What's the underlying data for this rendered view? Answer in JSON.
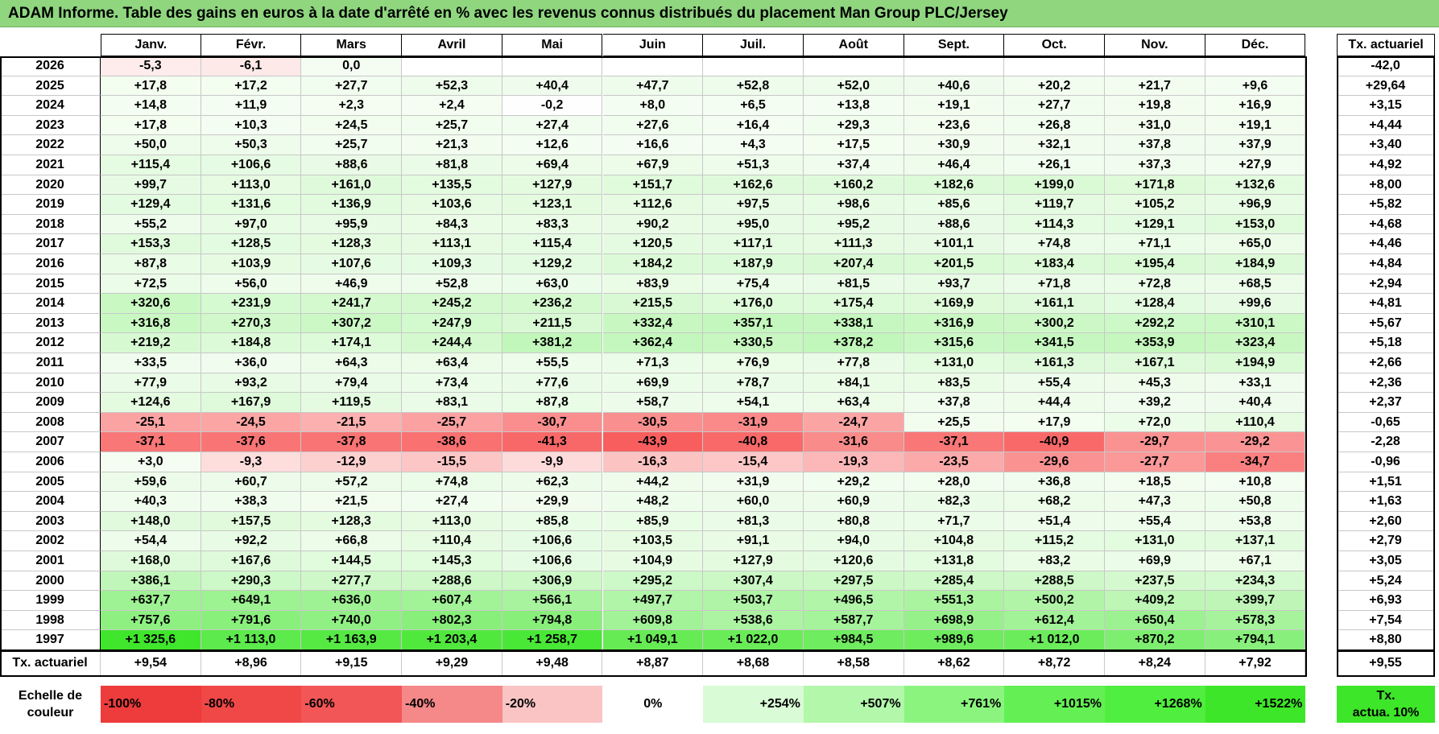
{
  "title": "ADAM Informe. Table des gains en euros à la date d'arrêté en % avec les revenus connus distribués du placement Man Group PLC/Jersey",
  "chart_data": {
    "type": "heatmap",
    "months": [
      "Janv.",
      "Févr.",
      "Mars",
      "Avril",
      "Mai",
      "Juin",
      "Juil.",
      "Août",
      "Sept.",
      "Oct.",
      "Nov.",
      "Déc."
    ],
    "tx_header": "Tx. actuariel",
    "rows": [
      {
        "year": "2026",
        "values": [
          "-5,3",
          "-6,1",
          "0,0",
          "",
          "",
          "",
          "",
          "",
          "",
          "",
          "",
          ""
        ],
        "tx": "-42,0"
      },
      {
        "year": "2025",
        "values": [
          "+17,8",
          "+17,2",
          "+27,7",
          "+52,3",
          "+40,4",
          "+47,7",
          "+52,8",
          "+52,0",
          "+40,6",
          "+20,2",
          "+21,7",
          "+9,6"
        ],
        "tx": "+29,64"
      },
      {
        "year": "2024",
        "values": [
          "+14,8",
          "+11,9",
          "+2,3",
          "+2,4",
          "-0,2",
          "+8,0",
          "+6,5",
          "+13,8",
          "+19,1",
          "+27,7",
          "+19,8",
          "+16,9"
        ],
        "tx": "+3,15"
      },
      {
        "year": "2023",
        "values": [
          "+17,8",
          "+10,3",
          "+24,5",
          "+25,7",
          "+27,4",
          "+27,6",
          "+16,4",
          "+29,3",
          "+23,6",
          "+26,8",
          "+31,0",
          "+19,1"
        ],
        "tx": "+4,44"
      },
      {
        "year": "2022",
        "values": [
          "+50,0",
          "+50,3",
          "+25,7",
          "+21,3",
          "+12,6",
          "+16,6",
          "+4,3",
          "+17,5",
          "+30,9",
          "+32,1",
          "+37,8",
          "+37,9"
        ],
        "tx": "+3,40"
      },
      {
        "year": "2021",
        "values": [
          "+115,4",
          "+106,6",
          "+88,6",
          "+81,8",
          "+69,4",
          "+67,9",
          "+51,3",
          "+37,4",
          "+46,4",
          "+26,1",
          "+37,3",
          "+27,9"
        ],
        "tx": "+4,92"
      },
      {
        "year": "2020",
        "values": [
          "+99,7",
          "+113,0",
          "+161,0",
          "+135,5",
          "+127,9",
          "+151,7",
          "+162,6",
          "+160,2",
          "+182,6",
          "+199,0",
          "+171,8",
          "+132,6"
        ],
        "tx": "+8,00"
      },
      {
        "year": "2019",
        "values": [
          "+129,4",
          "+131,6",
          "+136,9",
          "+103,6",
          "+123,1",
          "+112,6",
          "+97,5",
          "+98,6",
          "+85,6",
          "+119,7",
          "+105,2",
          "+96,9"
        ],
        "tx": "+5,82"
      },
      {
        "year": "2018",
        "values": [
          "+55,2",
          "+97,0",
          "+95,9",
          "+84,3",
          "+83,3",
          "+90,2",
          "+95,0",
          "+95,2",
          "+88,6",
          "+114,3",
          "+129,1",
          "+153,0"
        ],
        "tx": "+4,68"
      },
      {
        "year": "2017",
        "values": [
          "+153,3",
          "+128,5",
          "+128,3",
          "+113,1",
          "+115,4",
          "+120,5",
          "+117,1",
          "+111,3",
          "+101,1",
          "+74,8",
          "+71,1",
          "+65,0"
        ],
        "tx": "+4,46"
      },
      {
        "year": "2016",
        "values": [
          "+87,8",
          "+103,9",
          "+107,6",
          "+109,3",
          "+129,2",
          "+184,2",
          "+187,9",
          "+207,4",
          "+201,5",
          "+183,4",
          "+195,4",
          "+184,9"
        ],
        "tx": "+4,84"
      },
      {
        "year": "2015",
        "values": [
          "+72,5",
          "+56,0",
          "+46,9",
          "+52,8",
          "+63,0",
          "+83,9",
          "+75,4",
          "+81,5",
          "+93,7",
          "+71,8",
          "+72,8",
          "+68,5"
        ],
        "tx": "+2,94"
      },
      {
        "year": "2014",
        "values": [
          "+320,6",
          "+231,9",
          "+241,7",
          "+245,2",
          "+236,2",
          "+215,5",
          "+176,0",
          "+175,4",
          "+169,9",
          "+161,1",
          "+128,4",
          "+99,6"
        ],
        "tx": "+4,81"
      },
      {
        "year": "2013",
        "values": [
          "+316,8",
          "+270,3",
          "+307,2",
          "+247,9",
          "+211,5",
          "+332,4",
          "+357,1",
          "+338,1",
          "+316,9",
          "+300,2",
          "+292,2",
          "+310,1"
        ],
        "tx": "+5,67"
      },
      {
        "year": "2012",
        "values": [
          "+219,2",
          "+184,8",
          "+174,1",
          "+244,4",
          "+381,2",
          "+362,4",
          "+330,5",
          "+378,2",
          "+315,6",
          "+341,5",
          "+353,9",
          "+323,4"
        ],
        "tx": "+5,18"
      },
      {
        "year": "2011",
        "values": [
          "+33,5",
          "+36,0",
          "+64,3",
          "+63,4",
          "+55,5",
          "+71,3",
          "+76,9",
          "+77,8",
          "+131,0",
          "+161,3",
          "+167,1",
          "+194,9"
        ],
        "tx": "+2,66"
      },
      {
        "year": "2010",
        "values": [
          "+77,9",
          "+93,2",
          "+79,4",
          "+73,4",
          "+77,6",
          "+69,9",
          "+78,7",
          "+84,1",
          "+83,5",
          "+55,4",
          "+45,3",
          "+33,1"
        ],
        "tx": "+2,36"
      },
      {
        "year": "2009",
        "values": [
          "+124,6",
          "+167,9",
          "+119,5",
          "+83,1",
          "+87,8",
          "+58,7",
          "+54,1",
          "+63,4",
          "+37,8",
          "+44,4",
          "+39,2",
          "+40,4"
        ],
        "tx": "+2,37"
      },
      {
        "year": "2008",
        "values": [
          "-25,1",
          "-24,5",
          "-21,5",
          "-25,7",
          "-30,7",
          "-30,5",
          "-31,9",
          "-24,7",
          "+25,5",
          "+17,9",
          "+72,0",
          "+110,4"
        ],
        "tx": "-0,65"
      },
      {
        "year": "2007",
        "values": [
          "-37,1",
          "-37,6",
          "-37,8",
          "-38,6",
          "-41,3",
          "-43,9",
          "-40,8",
          "-31,6",
          "-37,1",
          "-40,9",
          "-29,7",
          "-29,2"
        ],
        "tx": "-2,28"
      },
      {
        "year": "2006",
        "values": [
          "+3,0",
          "-9,3",
          "-12,9",
          "-15,5",
          "-9,9",
          "-16,3",
          "-15,4",
          "-19,3",
          "-23,5",
          "-29,6",
          "-27,7",
          "-34,7"
        ],
        "tx": "-0,96"
      },
      {
        "year": "2005",
        "values": [
          "+59,6",
          "+60,7",
          "+57,2",
          "+74,8",
          "+62,3",
          "+44,2",
          "+31,9",
          "+29,2",
          "+28,0",
          "+36,8",
          "+18,5",
          "+10,8"
        ],
        "tx": "+1,51"
      },
      {
        "year": "2004",
        "values": [
          "+40,3",
          "+38,3",
          "+21,5",
          "+27,4",
          "+29,9",
          "+48,2",
          "+60,0",
          "+60,9",
          "+82,3",
          "+68,2",
          "+47,3",
          "+50,8"
        ],
        "tx": "+1,63"
      },
      {
        "year": "2003",
        "values": [
          "+148,0",
          "+157,5",
          "+128,3",
          "+113,0",
          "+85,8",
          "+85,9",
          "+81,3",
          "+80,8",
          "+71,7",
          "+51,4",
          "+55,4",
          "+53,8"
        ],
        "tx": "+2,60"
      },
      {
        "year": "2002",
        "values": [
          "+54,4",
          "+92,2",
          "+66,8",
          "+110,4",
          "+106,6",
          "+103,5",
          "+91,1",
          "+94,0",
          "+104,8",
          "+115,2",
          "+131,0",
          "+137,1"
        ],
        "tx": "+2,79"
      },
      {
        "year": "2001",
        "values": [
          "+168,0",
          "+167,6",
          "+144,5",
          "+145,3",
          "+106,6",
          "+104,9",
          "+127,9",
          "+120,6",
          "+131,8",
          "+83,2",
          "+69,9",
          "+67,1"
        ],
        "tx": "+3,05"
      },
      {
        "year": "2000",
        "values": [
          "+386,1",
          "+290,3",
          "+277,7",
          "+288,6",
          "+306,9",
          "+295,2",
          "+307,4",
          "+297,5",
          "+285,4",
          "+288,5",
          "+237,5",
          "+234,3"
        ],
        "tx": "+5,24"
      },
      {
        "year": "1999",
        "values": [
          "+637,7",
          "+649,1",
          "+636,0",
          "+607,4",
          "+566,1",
          "+497,7",
          "+503,7",
          "+496,5",
          "+551,3",
          "+500,2",
          "+409,2",
          "+399,7"
        ],
        "tx": "+6,93"
      },
      {
        "year": "1998",
        "values": [
          "+757,6",
          "+791,6",
          "+740,0",
          "+802,3",
          "+794,8",
          "+609,8",
          "+538,6",
          "+587,7",
          "+698,9",
          "+612,4",
          "+650,4",
          "+578,3"
        ],
        "tx": "+7,54"
      },
      {
        "year": "1997",
        "values": [
          "+1 325,6",
          "+1 113,0",
          "+1 163,9",
          "+1 203,4",
          "+1 258,7",
          "+1 049,1",
          "+1 022,0",
          "+984,5",
          "+989,6",
          "+1 012,0",
          "+870,2",
          "+794,1"
        ],
        "tx": "+8,80"
      }
    ],
    "footer": {
      "label": "Tx. actuariel",
      "values": [
        "+9,54",
        "+8,96",
        "+9,15",
        "+9,29",
        "+9,48",
        "+8,87",
        "+8,68",
        "+8,58",
        "+8,62",
        "+8,72",
        "+8,24",
        "+7,92"
      ],
      "tx": "+9,55"
    },
    "scale": {
      "label_line1": "Echelle de",
      "label_line2": "couleur",
      "steps": [
        {
          "text": "-100%",
          "color": "#ee3b3b"
        },
        {
          "text": "-80%",
          "color": "#f04747"
        },
        {
          "text": "-60%",
          "color": "#f25656"
        },
        {
          "text": "-40%",
          "color": "#f58888"
        },
        {
          "text": "-20%",
          "color": "#fac4c4"
        },
        {
          "text": "0%",
          "color": "#ffffff"
        },
        {
          "text": "+254%",
          "color": "#d9fbd5"
        },
        {
          "text": "+507%",
          "color": "#b2f7aa"
        },
        {
          "text": "+761%",
          "color": "#8bf47f"
        },
        {
          "text": "+1015%",
          "color": "#64f054"
        },
        {
          "text": "+1268%",
          "color": "#50ee3e"
        },
        {
          "text": "+1522%",
          "color": "#3de628"
        }
      ],
      "tx_line1": "Tx.",
      "tx_line2": "actua. 10%",
      "tx_color": "#3de628"
    }
  }
}
